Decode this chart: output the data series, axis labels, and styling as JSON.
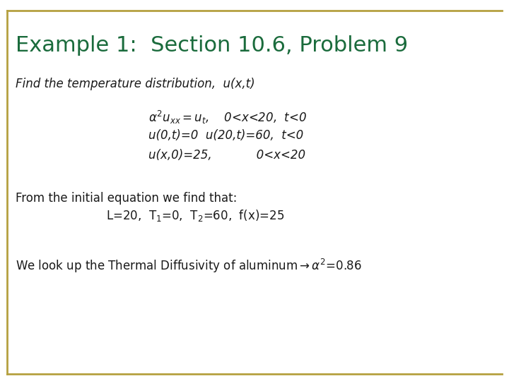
{
  "title": "Example 1:  Section 10.6, Problem 9",
  "title_color": "#1a6b3c",
  "title_fontsize": 22,
  "background_color": "#ffffff",
  "border_color": "#b5a040",
  "line1": "Find the temperature distribution,  u(x,t)",
  "line1_fontsize": 12,
  "eq_line1": "$\\alpha^2u_{xx}=u_t$,    0<x<20,  t<0",
  "eq_line2": "u(0,t)=0  u(20,t)=60,  t<0",
  "eq_line3": "u(x,0)=25,            0<x<20",
  "eq_fontsize": 12,
  "from_line": "From the initial equation we find that:",
  "from_line_fontsize": 12,
  "find_line": "L=20,  T$_1$=0,  T$_2$=60,  f(x)=25",
  "find_fontsize": 12,
  "lookup_fontsize": 12,
  "text_color": "#1a1a1a",
  "eq_color": "#1a1a1a"
}
